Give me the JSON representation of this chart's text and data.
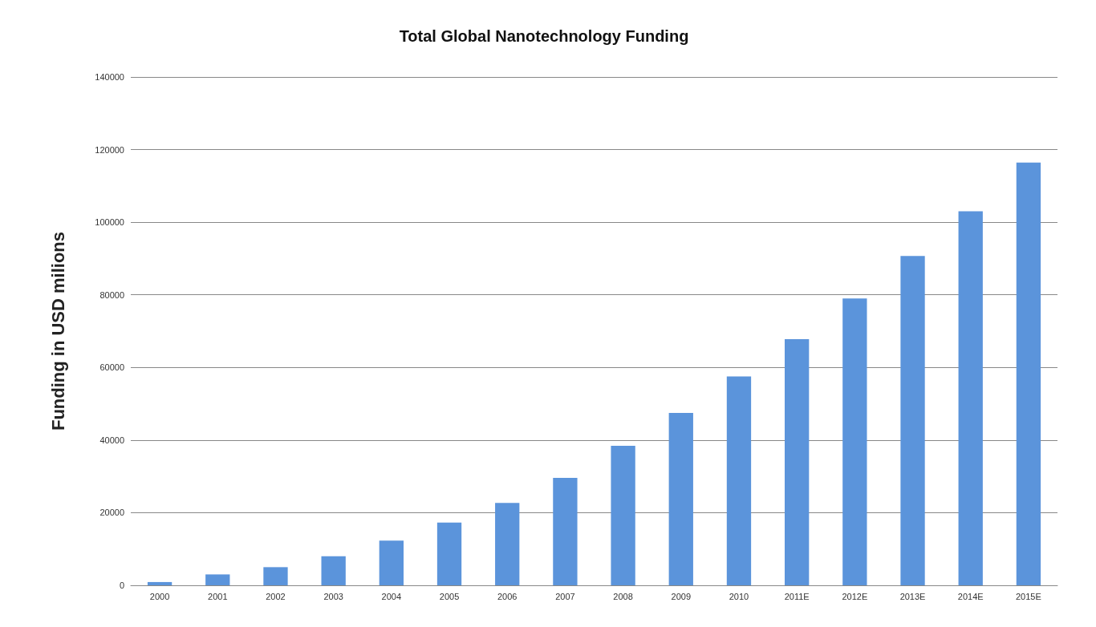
{
  "chart_data": {
    "type": "bar",
    "title": "Total Global Nanotechnology Funding",
    "ylabel": "Funding in USD milions",
    "categories": [
      "2000",
      "2001",
      "2002",
      "2003",
      "2004",
      "2005",
      "2006",
      "2007",
      "2008",
      "2009",
      "2010",
      "2011E",
      "2012E",
      "2013E",
      "2014E",
      "2015E"
    ],
    "values": [
      900,
      3000,
      5000,
      8000,
      12300,
      17300,
      22700,
      29600,
      38400,
      47500,
      57500,
      67800,
      79000,
      90700,
      103000,
      116400
    ],
    "color": "#5b94db",
    "ylim": [
      0,
      140000
    ],
    "yticks": [
      0,
      20000,
      40000,
      60000,
      80000,
      100000,
      120000,
      140000
    ],
    "grid": "y"
  }
}
